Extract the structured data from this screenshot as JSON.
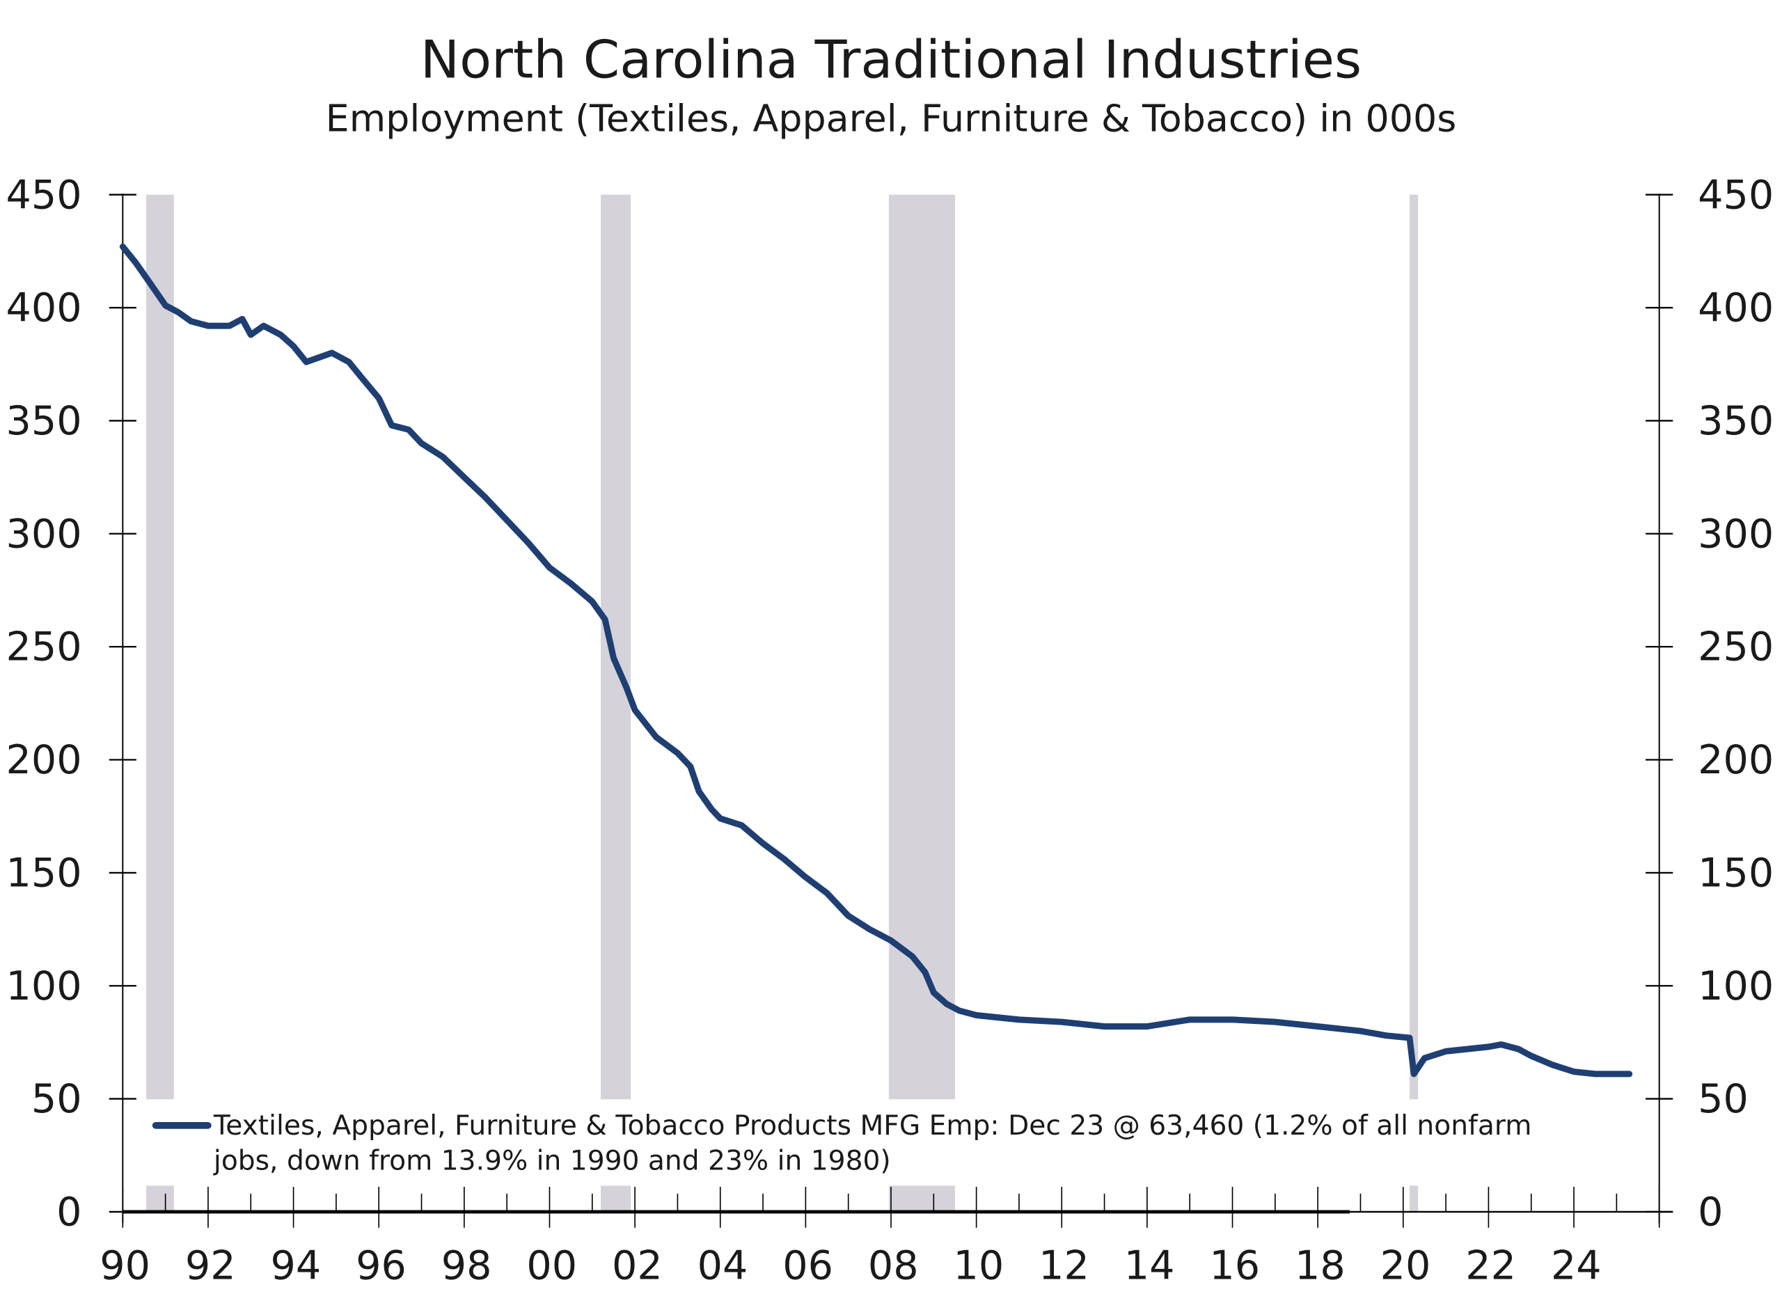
{
  "chart_data": {
    "type": "line",
    "title": "North Carolina Traditional Industries",
    "subtitle": "Employment (Textiles, Apparel, Furniture & Tobacco) in 000s",
    "xlabel": "",
    "ylabel": "",
    "xlim": [
      1990,
      2026
    ],
    "ylim": [
      0,
      450
    ],
    "y_ticks": [
      0,
      50,
      100,
      150,
      200,
      250,
      300,
      350,
      400,
      450
    ],
    "y_tick_labels": [
      "0",
      "50",
      "100",
      "150",
      "200",
      "250",
      "300",
      "350",
      "400",
      "450"
    ],
    "x_ticks": [
      1990,
      1992,
      1994,
      1996,
      1998,
      2000,
      2002,
      2004,
      2006,
      2008,
      2010,
      2012,
      2014,
      2016,
      2018,
      2020,
      2022,
      2024
    ],
    "x_tick_labels": [
      "90",
      "92",
      "94",
      "96",
      "98",
      "00",
      "02",
      "04",
      "06",
      "08",
      "10",
      "12",
      "14",
      "16",
      "18",
      "20",
      "22",
      "24"
    ],
    "grid": false,
    "legend_placement": "bottom",
    "recessions": [
      [
        1990.55,
        1991.2
      ],
      [
        2001.2,
        2001.9
      ],
      [
        2007.95,
        2009.5
      ],
      [
        2020.15,
        2020.35
      ]
    ],
    "series": [
      {
        "name": "Textiles, Apparel, Furniture & Tobacco Products MFG Emp: Dec 23 @ 63,460 (1.2% of all nonfarm jobs, down from 13.9% in 1990 and 23% in 1980)",
        "legend_line1": "Textiles, Apparel, Furniture & Tobacco Products MFG Emp: Dec 23 @ 63,460 (1.2% of all nonfarm",
        "legend_line2": "jobs, down from 13.9% in 1990 and 23% in 1980)",
        "color": "#1f3f73",
        "x": [
          1990.0,
          1990.3,
          1990.6,
          1991.0,
          1991.3,
          1991.6,
          1992.0,
          1992.5,
          1992.8,
          1993.0,
          1993.3,
          1993.7,
          1994.0,
          1994.3,
          1994.6,
          1994.9,
          1995.3,
          1995.6,
          1996.0,
          1996.3,
          1996.7,
          1997.0,
          1997.5,
          1998.0,
          1998.5,
          1999.0,
          1999.5,
          2000.0,
          2000.5,
          2001.0,
          2001.3,
          2001.5,
          2001.8,
          2002.0,
          2002.5,
          2003.0,
          2003.3,
          2003.5,
          2003.8,
          2004.0,
          2004.5,
          2005.0,
          2005.5,
          2006.0,
          2006.5,
          2007.0,
          2007.5,
          2008.0,
          2008.5,
          2008.8,
          2009.0,
          2009.3,
          2009.6,
          2010.0,
          2011.0,
          2012.0,
          2013.0,
          2014.0,
          2015.0,
          2016.0,
          2017.0,
          2018.0,
          2019.0,
          2019.6,
          2020.15,
          2020.25,
          2020.5,
          2021.0,
          2021.5,
          2022.0,
          2022.3,
          2022.7,
          2023.0,
          2023.5,
          2024.0,
          2024.5,
          2025.0,
          2025.3
        ],
        "values": [
          427,
          420,
          412,
          401,
          398,
          394,
          392,
          392,
          395,
          388,
          392,
          388,
          383,
          376,
          378,
          380,
          376,
          369,
          360,
          348,
          346,
          340,
          334,
          325,
          316,
          306,
          296,
          285,
          278,
          270,
          262,
          245,
          232,
          222,
          210,
          203,
          197,
          186,
          178,
          174,
          171,
          163,
          156,
          148,
          141,
          131,
          125,
          120,
          113,
          106,
          97,
          92,
          89,
          87,
          85,
          84,
          82,
          82,
          85,
          85,
          84,
          82,
          80,
          78,
          77,
          61,
          68,
          71,
          72,
          73,
          74,
          72,
          69,
          65,
          62,
          61,
          61,
          61
        ]
      }
    ]
  }
}
